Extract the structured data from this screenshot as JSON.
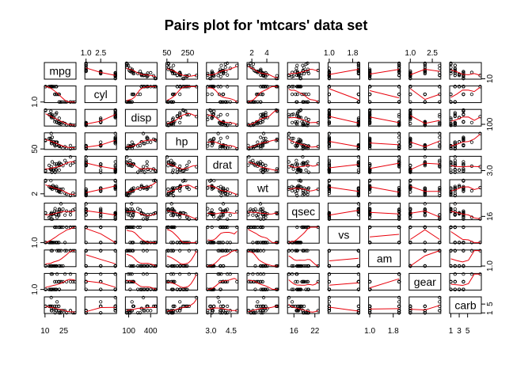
{
  "chart_data": {
    "type": "scatter",
    "title": "Pairs plot for 'mtcars' data set",
    "variables": [
      "mpg",
      "cyl",
      "disp",
      "hp",
      "drat",
      "wt",
      "qsec",
      "vs",
      "am",
      "gear",
      "carb"
    ],
    "axis_ticks": {
      "top": [
        {
          "var": "cyl",
          "labels": [
            "1.0",
            "2.5"
          ],
          "values": [
            4,
            6
          ]
        },
        {
          "var": "hp",
          "labels": [
            "50",
            "250"
          ],
          "values": [
            50,
            250
          ]
        },
        {
          "var": "wt",
          "labels": [
            "2",
            "4"
          ],
          "values": [
            2,
            4
          ]
        },
        {
          "var": "vs",
          "labels": [
            "1.0",
            "1.8"
          ],
          "values": [
            0,
            0.8
          ]
        },
        {
          "var": "gear",
          "labels": [
            "1.0",
            "2.5"
          ],
          "values": [
            3,
            4.5
          ]
        }
      ],
      "bottom": [
        {
          "var": "mpg",
          "labels": [
            "10",
            "25"
          ],
          "values": [
            10,
            25
          ]
        },
        {
          "var": "disp",
          "labels": [
            "100",
            "400"
          ],
          "values": [
            100,
            400
          ]
        },
        {
          "var": "drat",
          "labels": [
            "3.0",
            "4.5"
          ],
          "values": [
            3.0,
            4.5
          ]
        },
        {
          "var": "qsec",
          "labels": [
            "16",
            "22"
          ],
          "values": [
            16,
            22
          ]
        },
        {
          "var": "am",
          "labels": [
            "1.0",
            "1.8"
          ],
          "values": [
            0,
            0.8
          ]
        },
        {
          "var": "carb",
          "labels": [
            "1",
            "3",
            "5"
          ],
          "values": [
            1,
            3,
            5
          ]
        }
      ],
      "left": [
        {
          "var": "cyl",
          "labels": [
            "1.0"
          ],
          "values": [
            4
          ]
        },
        {
          "var": "hp",
          "labels": [
            "50"
          ],
          "values": [
            50
          ]
        },
        {
          "var": "wt",
          "labels": [
            "2"
          ],
          "values": [
            2
          ]
        },
        {
          "var": "vs",
          "labels": [
            "1.0"
          ],
          "values": [
            0
          ]
        },
        {
          "var": "gear",
          "labels": [
            "1.0"
          ],
          "values": [
            3
          ]
        }
      ],
      "right": [
        {
          "var": "mpg",
          "labels": [
            "10"
          ],
          "values": [
            10
          ]
        },
        {
          "var": "disp",
          "labels": [
            "100"
          ],
          "values": [
            100
          ]
        },
        {
          "var": "drat",
          "labels": [
            "3.0"
          ],
          "values": [
            3.0
          ]
        },
        {
          "var": "qsec",
          "labels": [
            "16"
          ],
          "values": [
            16
          ]
        },
        {
          "var": "am",
          "labels": [
            "1.0"
          ],
          "values": [
            0
          ]
        },
        {
          "var": "carb",
          "labels": [
            "1",
            "5"
          ],
          "values": [
            1,
            5
          ]
        }
      ]
    },
    "point_color": "#000000",
    "smooth_color": "#e8000b",
    "data": {
      "mpg": [
        21,
        21,
        22.8,
        21.4,
        18.7,
        18.1,
        14.3,
        24.4,
        22.8,
        19.2,
        17.8,
        16.4,
        17.3,
        15.2,
        10.4,
        10.4,
        14.7,
        32.4,
        30.4,
        33.9,
        21.5,
        15.5,
        15.2,
        13.3,
        19.2,
        27.3,
        26,
        30.4,
        15.8,
        19.7,
        15,
        21.4
      ],
      "cyl": [
        6,
        6,
        4,
        6,
        8,
        6,
        8,
        4,
        4,
        6,
        6,
        8,
        8,
        8,
        8,
        8,
        8,
        4,
        4,
        4,
        4,
        8,
        8,
        8,
        8,
        4,
        4,
        4,
        8,
        6,
        8,
        4
      ],
      "disp": [
        160,
        160,
        108,
        258,
        360,
        225,
        360,
        146.7,
        140.8,
        167.6,
        167.6,
        275.8,
        275.8,
        275.8,
        472,
        460,
        440,
        78.7,
        75.7,
        71.1,
        120.1,
        318,
        304,
        350,
        400,
        79,
        120.3,
        95.1,
        351,
        145,
        301,
        121
      ],
      "hp": [
        110,
        110,
        93,
        110,
        175,
        105,
        245,
        62,
        95,
        123,
        123,
        180,
        180,
        180,
        205,
        215,
        230,
        66,
        52,
        65,
        97,
        150,
        150,
        245,
        175,
        66,
        91,
        113,
        264,
        175,
        335,
        109
      ],
      "drat": [
        3.9,
        3.9,
        3.85,
        3.08,
        3.15,
        2.76,
        3.21,
        3.69,
        3.92,
        3.92,
        3.92,
        3.07,
        3.07,
        3.07,
        2.93,
        3,
        3.23,
        4.08,
        4.93,
        4.22,
        3.7,
        2.76,
        3.15,
        3.73,
        3.08,
        4.08,
        4.43,
        3.77,
        4.22,
        3.62,
        3.54,
        4.11
      ],
      "wt": [
        2.62,
        2.875,
        2.32,
        3.215,
        3.44,
        3.46,
        3.57,
        3.19,
        3.15,
        3.44,
        3.44,
        4.07,
        3.73,
        3.78,
        5.25,
        5.424,
        5.345,
        2.2,
        1.615,
        1.835,
        2.465,
        3.52,
        3.435,
        3.84,
        3.845,
        1.935,
        2.14,
        1.513,
        3.17,
        2.77,
        3.57,
        2.78
      ],
      "qsec": [
        16.46,
        17.02,
        18.61,
        19.44,
        17.02,
        20.22,
        15.84,
        20,
        22.9,
        18.3,
        18.9,
        17.4,
        17.6,
        18,
        17.98,
        17.82,
        17.42,
        19.47,
        18.52,
        19.9,
        20.01,
        16.87,
        17.3,
        15.41,
        17.05,
        18.9,
        16.7,
        16.9,
        14.5,
        15.5,
        14.6,
        18.6
      ],
      "vs": [
        0,
        0,
        1,
        1,
        0,
        1,
        0,
        1,
        1,
        1,
        1,
        0,
        0,
        0,
        0,
        0,
        0,
        1,
        1,
        1,
        1,
        0,
        0,
        0,
        0,
        1,
        0,
        1,
        0,
        0,
        0,
        1
      ],
      "am": [
        1,
        1,
        1,
        0,
        0,
        0,
        0,
        0,
        0,
        0,
        0,
        0,
        0,
        0,
        0,
        0,
        0,
        1,
        1,
        1,
        0,
        0,
        0,
        0,
        0,
        1,
        1,
        1,
        1,
        1,
        1,
        1
      ],
      "gear": [
        4,
        4,
        4,
        3,
        3,
        3,
        3,
        4,
        4,
        4,
        4,
        3,
        3,
        3,
        3,
        3,
        3,
        4,
        4,
        4,
        3,
        3,
        3,
        3,
        3,
        4,
        5,
        5,
        5,
        5,
        5,
        4
      ],
      "carb": [
        4,
        4,
        1,
        1,
        2,
        1,
        4,
        2,
        2,
        4,
        4,
        3,
        3,
        3,
        4,
        4,
        4,
        1,
        2,
        1,
        1,
        2,
        2,
        4,
        2,
        1,
        2,
        2,
        4,
        6,
        8,
        2
      ]
    }
  }
}
